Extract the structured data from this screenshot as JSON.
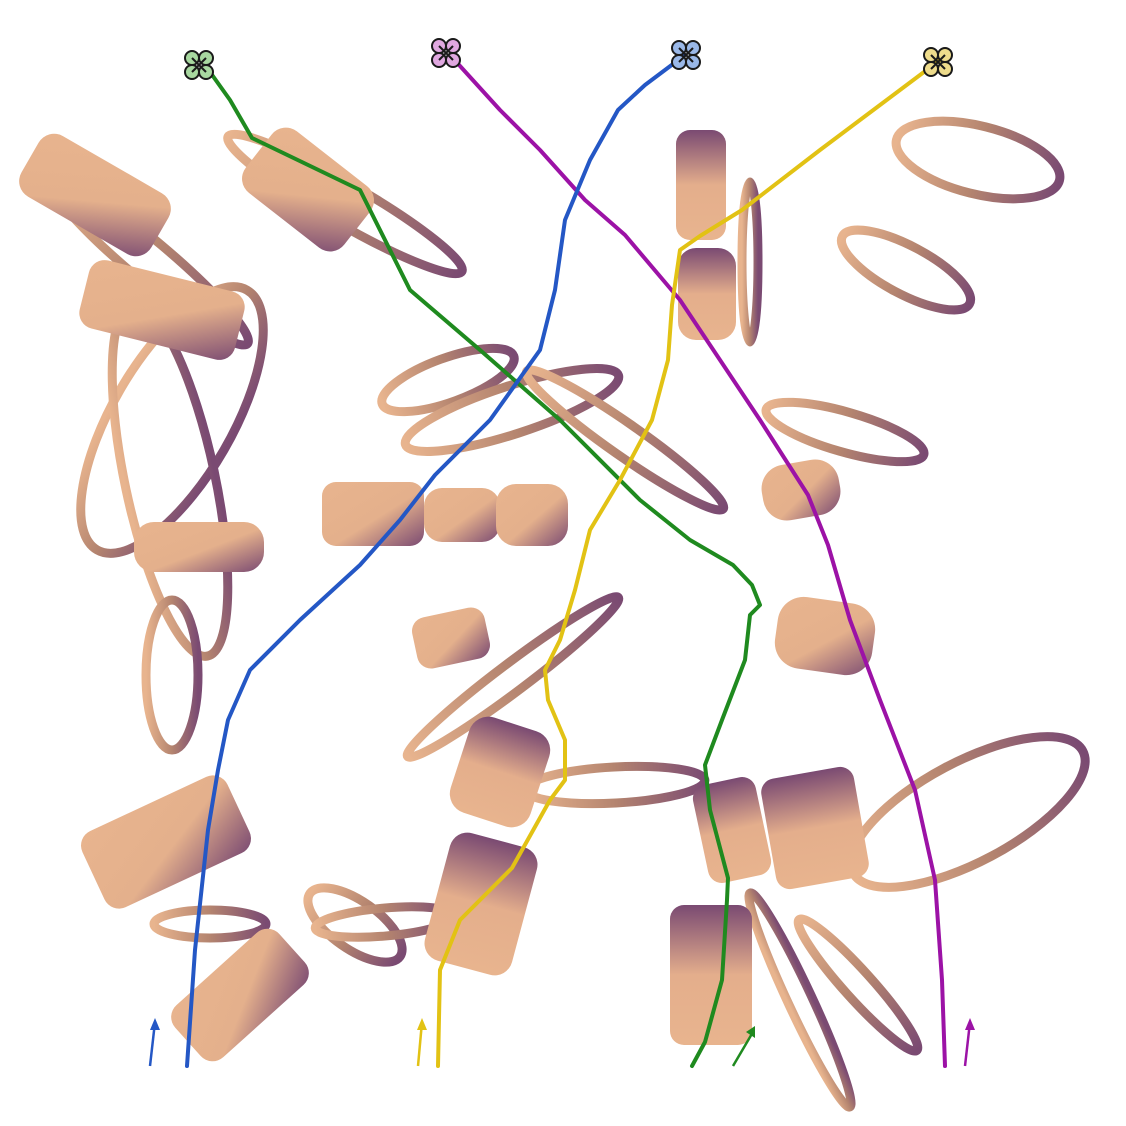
{
  "scene": {
    "background": "#ffffff",
    "obstacle_light": "#e8b48e",
    "obstacle_dark": "#7a4a72",
    "agents": [
      {
        "name": "green-drone",
        "color": "#1f8a1f",
        "tint": "#a8d8a0"
      },
      {
        "name": "magenta-drone",
        "color": "#9c12a6",
        "tint": "#e0a8e0"
      },
      {
        "name": "blue-drone",
        "color": "#2457c5",
        "tint": "#9ab8e8"
      },
      {
        "name": "yellow-drone",
        "color": "#e2c214",
        "tint": "#eedc8c"
      }
    ]
  }
}
